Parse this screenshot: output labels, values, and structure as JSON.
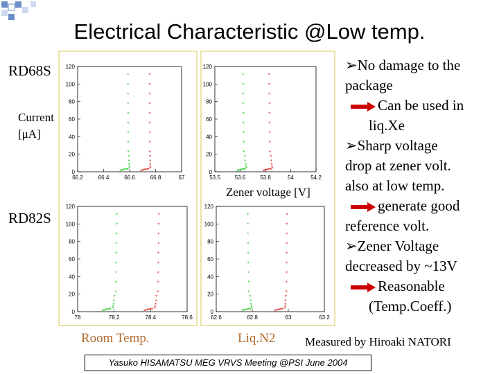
{
  "slide": {
    "title": "Electrical Characteristic @Low temp.",
    "labels": {
      "rd68s": "RD68S",
      "rd82s": "RD82S",
      "current": "Current",
      "current_unit": "[μA]",
      "zener_voltage": "Zener voltage [V]"
    },
    "captions": {
      "room": "Room Temp.",
      "liq": "Liq.N2",
      "measured": "Measured by Hiroaki NATORI"
    },
    "footer": "Yasuko HISAMATSU MEG VRVS Meeting @PSI June 2004",
    "notes": [
      {
        "text": "No damage to the",
        "style": "bullet"
      },
      {
        "text": "package",
        "style": "plain"
      },
      {
        "text": "Can be used in",
        "style": "arrow"
      },
      {
        "text": "liq.Xe",
        "style": "indent"
      },
      {
        "text": "Sharp voltage",
        "style": "bullet"
      },
      {
        "text": "drop at zener volt.",
        "style": "plain"
      },
      {
        "text": "also at low temp.",
        "style": "plain"
      },
      {
        "text": "generate good",
        "style": "arrow"
      },
      {
        "text": "reference volt.",
        "style": "plain"
      },
      {
        "text": "Zener Voltage",
        "style": "bullet"
      },
      {
        "text": "decreased by ~13V",
        "style": "plain"
      },
      {
        "text": "Reasonable",
        "style": "arrow"
      },
      {
        "text": "(Temp.Coeff.)",
        "style": "indent"
      }
    ],
    "colors": {
      "series_a": "#22cc22",
      "series_b": "#dd2222",
      "arrow": "#cc0000",
      "frame": "#e8e4a8"
    }
  },
  "chart_data": [
    {
      "type": "scatter",
      "name": "RD68S room temp",
      "ylabel": "Current [μA]",
      "ylim": [
        0,
        120
      ],
      "xlim": [
        66.2,
        67
      ],
      "xticks": [
        "66.2",
        "66.4",
        "66.6",
        "66.8",
        "67"
      ],
      "yticks": [
        "0",
        "20",
        "40",
        "60",
        "80",
        "100",
        "120"
      ],
      "series": [
        {
          "name": "green",
          "knee": 66.6,
          "up": 66.59,
          "color": "#22cc22"
        },
        {
          "name": "red",
          "knee": 66.76,
          "up": 66.755,
          "color": "#dd2222"
        }
      ]
    },
    {
      "type": "scatter",
      "name": "RD68S liq N2",
      "ylim": [
        0,
        120
      ],
      "xlim": [
        53.5,
        54.2
      ],
      "xticks": [
        "53.5",
        "53.6",
        "53.8",
        "54",
        "54.2"
      ],
      "yticks": [
        "0",
        "20",
        "40",
        "60",
        "80",
        "100",
        "120"
      ],
      "series": [
        {
          "name": "green",
          "knee": 53.72,
          "up": 53.7,
          "color": "#22cc22"
        },
        {
          "name": "red",
          "knee": 53.9,
          "up": 53.88,
          "color": "#dd2222"
        }
      ]
    },
    {
      "type": "scatter",
      "name": "RD82S room temp",
      "ylim": [
        0,
        120
      ],
      "xlim": [
        78,
        78.6
      ],
      "xticks": [
        "78",
        "78.2",
        "78.4",
        "78.6"
      ],
      "yticks": [
        "0",
        "20",
        "40",
        "60",
        "80",
        "100",
        "120"
      ],
      "series": [
        {
          "name": "green",
          "knee": 78.19,
          "up": 78.21,
          "color": "#22cc22"
        },
        {
          "name": "red",
          "knee": 78.42,
          "up": 78.44,
          "color": "#dd2222"
        }
      ]
    },
    {
      "type": "scatter",
      "name": "RD82S liq N2",
      "ylim": [
        0,
        120
      ],
      "xlim": [
        62.6,
        63.2
      ],
      "xticks": [
        "62.6",
        "62.8",
        "63",
        "63.2"
      ],
      "yticks": [
        "0",
        "20",
        "40",
        "60",
        "80",
        "100",
        "120"
      ],
      "series": [
        {
          "name": "green",
          "knee": 62.8,
          "up": 62.78,
          "color": "#22cc22"
        },
        {
          "name": "red",
          "knee": 62.98,
          "up": 62.99,
          "color": "#dd2222"
        }
      ]
    }
  ]
}
